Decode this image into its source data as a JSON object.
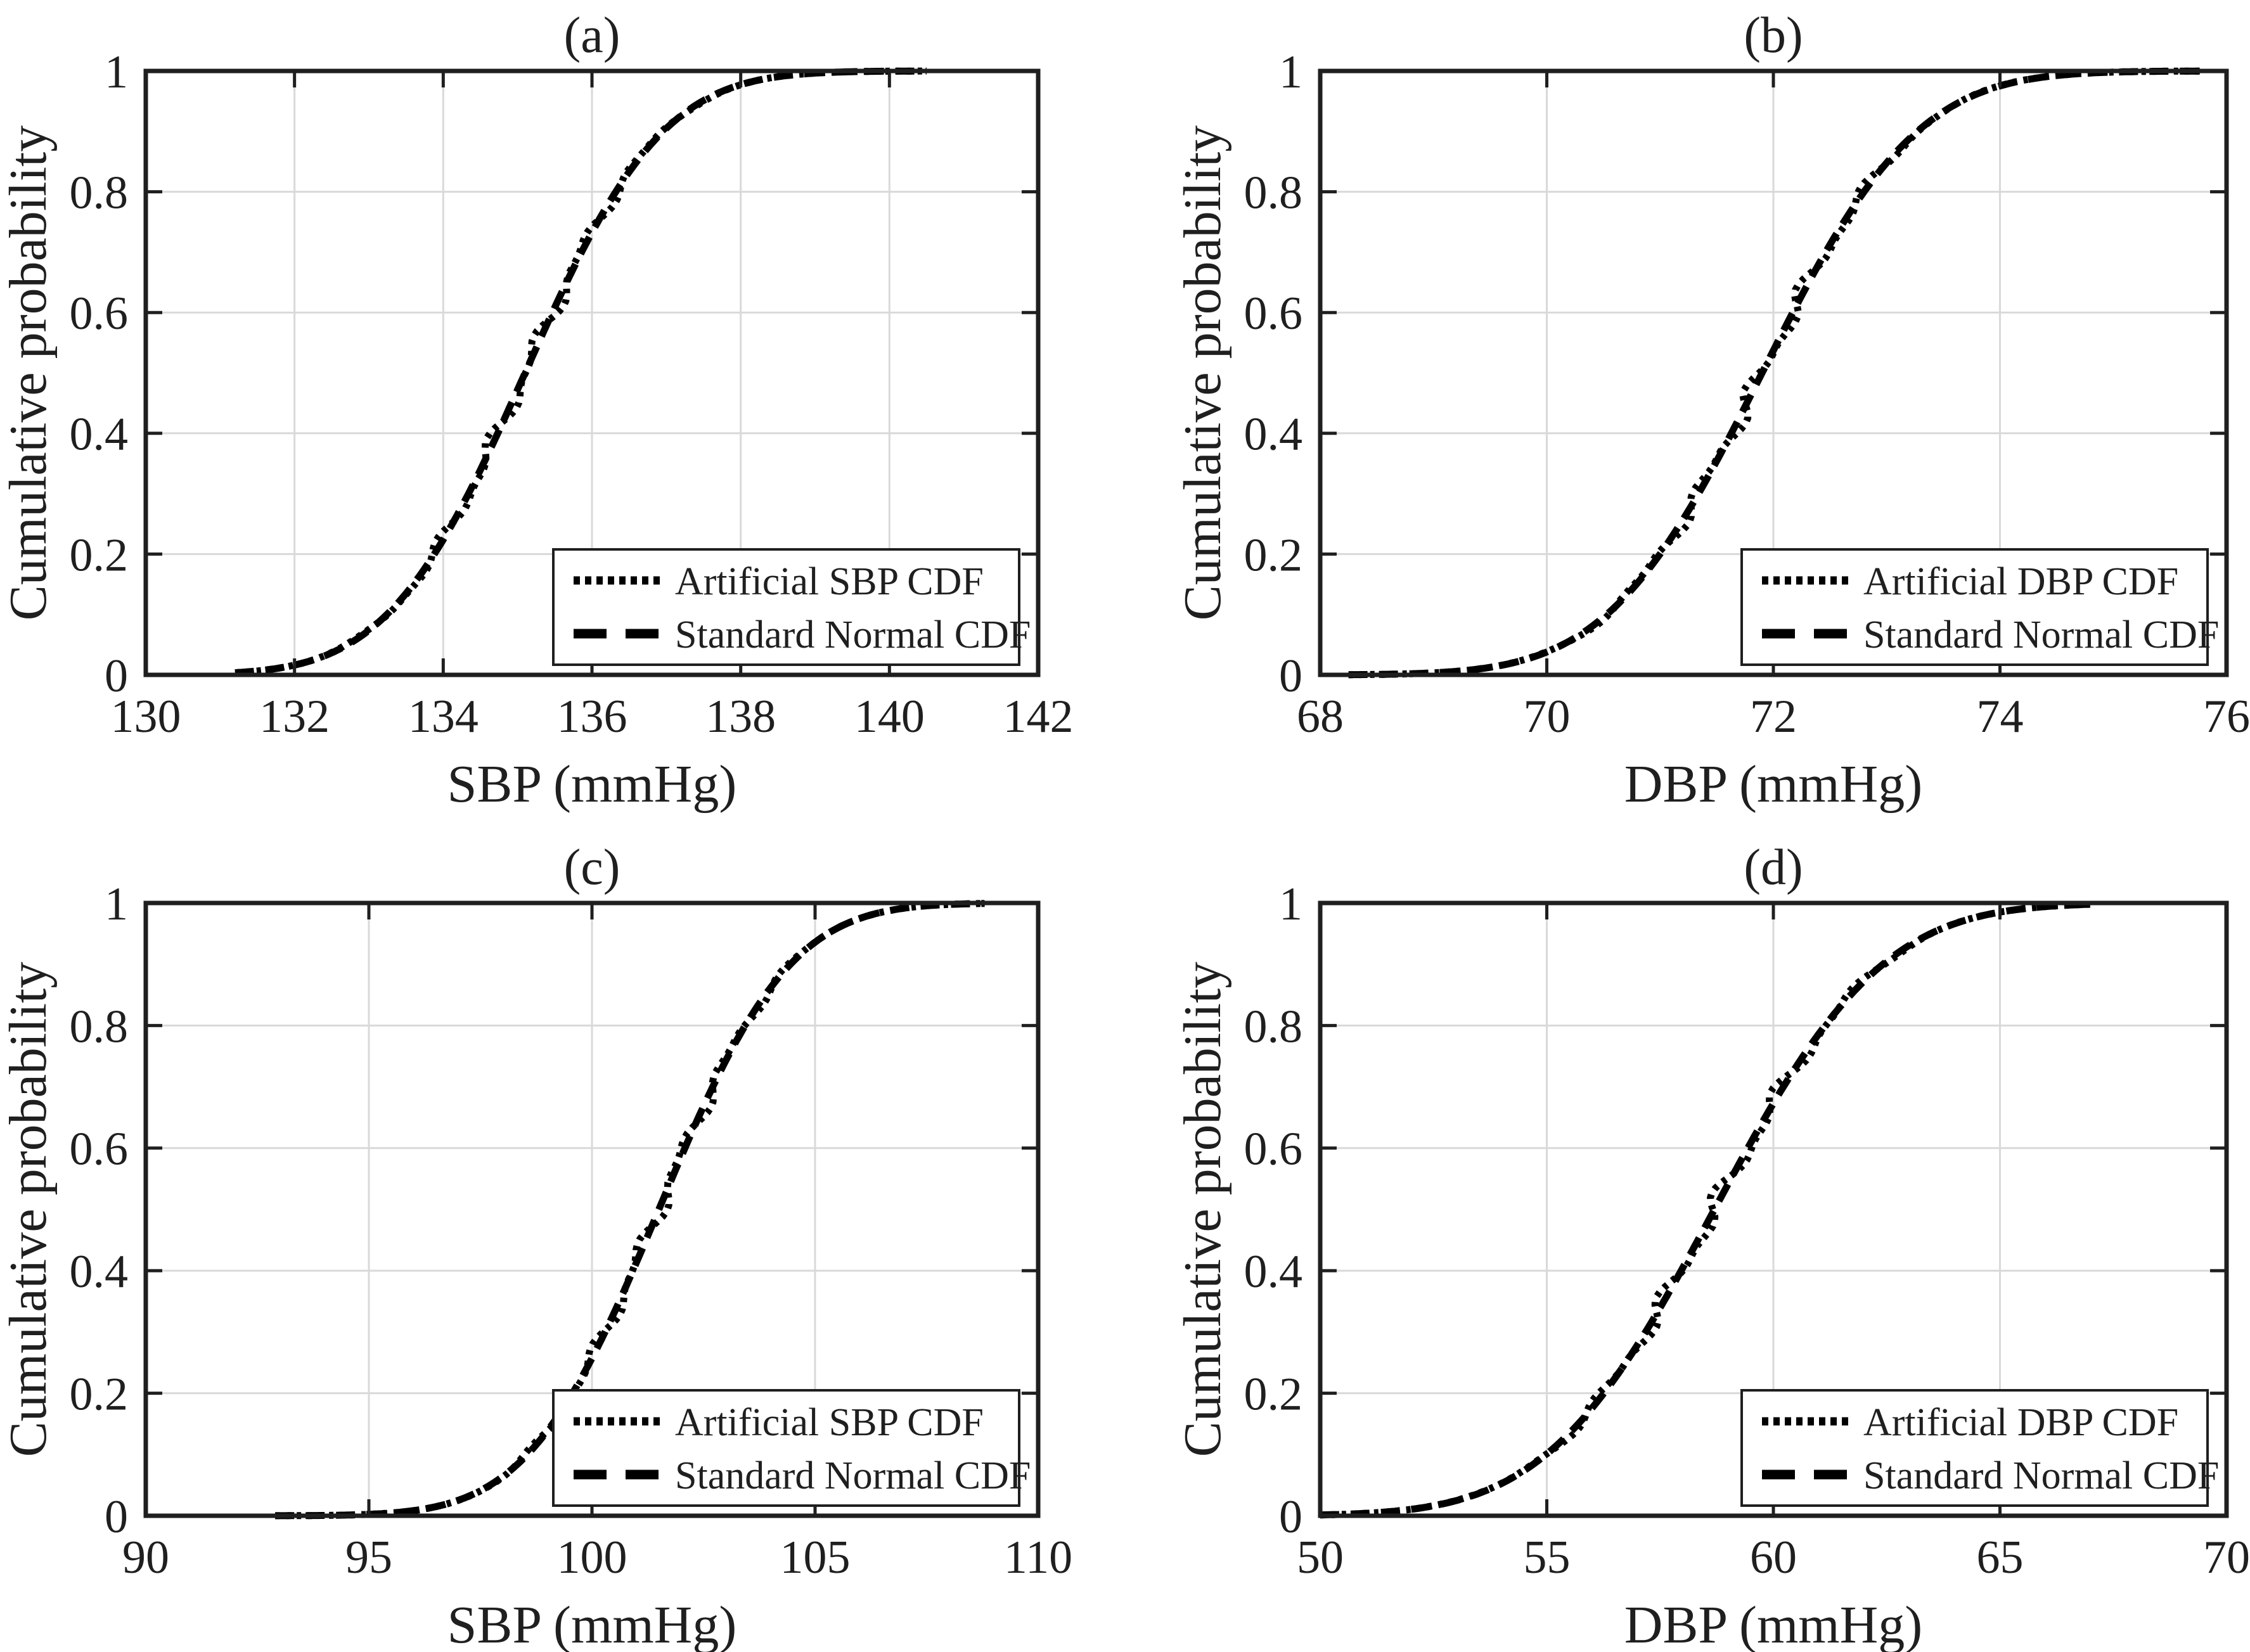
{
  "figure": {
    "background": "#ffffff",
    "text_color": "#1f1f1f",
    "axis_color": "#1f1f1f",
    "grid_color": "#d9d9d9",
    "curve_color": "#000000",
    "ylabel": "Cumulative probability",
    "yticks": [
      0,
      0.2,
      0.4,
      0.6,
      0.8,
      1
    ],
    "ytick_labels": [
      "0",
      "0.2",
      "0.4",
      "0.6",
      "0.8",
      "1"
    ]
  },
  "chart_data": {
    "type": "line",
    "description": "Four-panel figure of cumulative distribution functions: in each panel a dotted empirical (artificial) blood-pressure CDF overlaps a dashed fitted Standard Normal CDF almost exactly.",
    "panels": [
      {
        "id": "a",
        "title": "(a)",
        "xlabel": "SBP (mmHg)",
        "xlim": [
          130,
          142
        ],
        "xticks": [
          130,
          132,
          134,
          136,
          138,
          140,
          142
        ],
        "xtick_labels": [
          "130",
          "132",
          "134",
          "136",
          "138",
          "140",
          "142"
        ],
        "ylim": [
          0,
          1
        ],
        "legend": [
          {
            "label": "Artificial SBP CDF",
            "style": "dotted"
          },
          {
            "label": "Standard Normal CDF",
            "style": "dashed"
          }
        ],
        "normal_fit": {
          "mean": 135.1,
          "sd": 1.45
        },
        "data_range": [
          131.2,
          140.5
        ],
        "cdf_points": {
          "p": [
            0.01,
            0.05,
            0.1,
            0.2,
            0.3,
            0.4,
            0.5,
            0.6,
            0.7,
            0.8,
            0.9,
            0.95,
            0.99
          ],
          "x": [
            131.73,
            132.71,
            133.24,
            133.88,
            134.34,
            134.73,
            135.1,
            135.47,
            135.86,
            136.32,
            136.96,
            137.49,
            138.47
          ]
        }
      },
      {
        "id": "b",
        "title": "(b)",
        "xlabel": "DBP (mmHg)",
        "xlim": [
          68,
          76
        ],
        "xticks": [
          68,
          70,
          72,
          74,
          76
        ],
        "xtick_labels": [
          "68",
          "70",
          "72",
          "74",
          "76"
        ],
        "ylim": [
          0,
          1
        ],
        "legend": [
          {
            "label": "Artificial DBP CDF",
            "style": "dotted"
          },
          {
            "label": "Standard Normal CDF",
            "style": "dashed"
          }
        ],
        "normal_fit": {
          "mean": 71.9,
          "sd": 1.07
        },
        "data_range": [
          68.25,
          75.8
        ],
        "cdf_points": {
          "p": [
            0.01,
            0.05,
            0.1,
            0.2,
            0.3,
            0.4,
            0.5,
            0.6,
            0.7,
            0.8,
            0.9,
            0.95,
            0.99
          ],
          "x": [
            69.41,
            70.14,
            70.53,
            71.0,
            71.34,
            71.63,
            71.9,
            72.17,
            72.46,
            72.8,
            73.27,
            73.66,
            74.39
          ]
        }
      },
      {
        "id": "c",
        "title": "(c)",
        "xlabel": "SBP (mmHg)",
        "xlim": [
          90,
          110
        ],
        "xticks": [
          90,
          95,
          100,
          105,
          110
        ],
        "xtick_labels": [
          "90",
          "95",
          "100",
          "105",
          "110"
        ],
        "ylim": [
          0,
          1
        ],
        "legend": [
          {
            "label": "Artificial SBP CDF",
            "style": "dotted"
          },
          {
            "label": "Standard Normal CDF",
            "style": "dashed"
          }
        ],
        "normal_fit": {
          "mean": 101.5,
          "sd": 2.3
        },
        "data_range": [
          92.9,
          108.8
        ],
        "cdf_points": {
          "p": [
            0.01,
            0.05,
            0.1,
            0.2,
            0.3,
            0.4,
            0.5,
            0.6,
            0.7,
            0.8,
            0.9,
            0.95,
            0.99
          ],
          "x": [
            96.15,
            97.72,
            98.55,
            99.56,
            100.29,
            100.92,
            101.5,
            102.08,
            102.71,
            103.44,
            104.45,
            105.28,
            106.85
          ]
        }
      },
      {
        "id": "d",
        "title": "(d)",
        "xlabel": "DBP (mmHg)",
        "xlim": [
          50,
          70
        ],
        "xticks": [
          50,
          55,
          60,
          65,
          70
        ],
        "xtick_labels": [
          "50",
          "55",
          "60",
          "65",
          "70"
        ],
        "ylim": [
          0,
          1
        ],
        "legend": [
          {
            "label": "Artificial DBP CDF",
            "style": "dotted"
          },
          {
            "label": "Standard Normal CDF",
            "style": "dashed"
          }
        ],
        "normal_fit": {
          "mean": 58.7,
          "sd": 2.9
        },
        "data_range": [
          50.0,
          67.0
        ],
        "cdf_points": {
          "p": [
            0.01,
            0.05,
            0.1,
            0.2,
            0.3,
            0.4,
            0.5,
            0.6,
            0.7,
            0.8,
            0.9,
            0.95,
            0.99
          ],
          "x": [
            51.95,
            53.93,
            54.98,
            56.26,
            57.18,
            57.97,
            58.7,
            59.43,
            60.22,
            61.14,
            62.42,
            63.47,
            65.45
          ]
        }
      }
    ]
  }
}
